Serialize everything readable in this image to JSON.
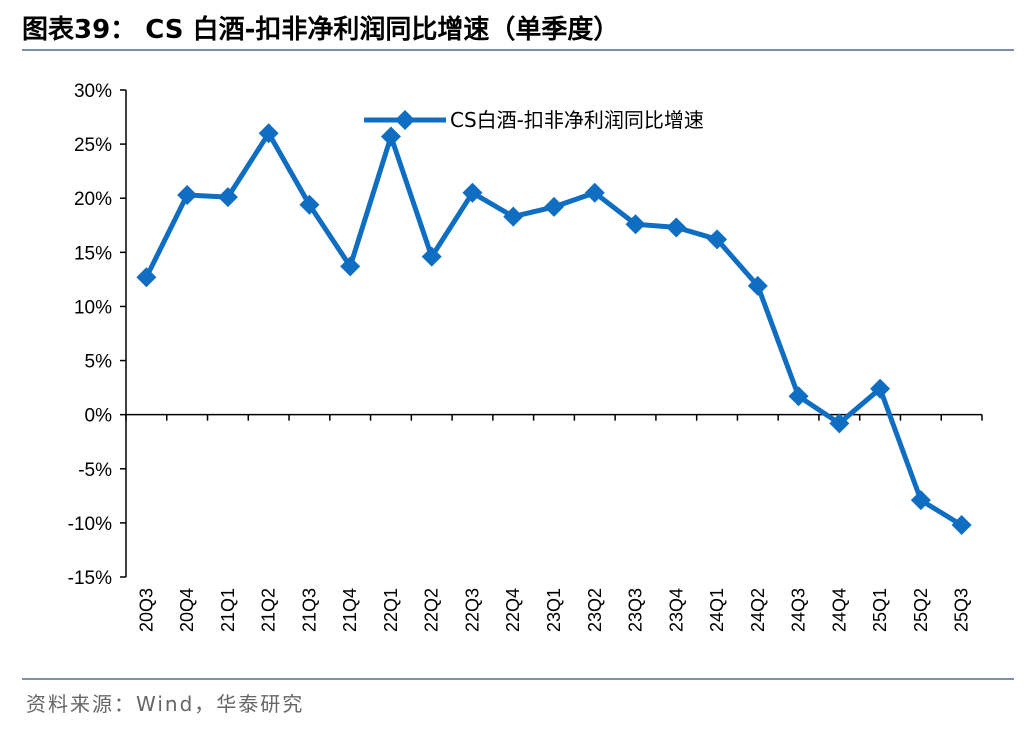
{
  "figure": {
    "title": "图表39： CS 白酒-扣非净利润同比增速（单季度）",
    "source": "资料来源：Wind，华泰研究"
  },
  "chart_data": {
    "type": "line",
    "title": "",
    "xlabel": "",
    "ylabel": "",
    "categories": [
      "20Q3",
      "20Q4",
      "21Q1",
      "21Q2",
      "21Q3",
      "21Q4",
      "22Q1",
      "22Q2",
      "22Q3",
      "22Q4",
      "23Q1",
      "23Q2",
      "23Q3",
      "23Q4",
      "24Q1",
      "24Q2",
      "24Q3",
      "24Q4",
      "25Q1",
      "25Q2",
      "25Q3"
    ],
    "series": [
      {
        "name": "CS白酒-扣非净利润同比增速",
        "color": "#0f6ec1",
        "marker": "diamond",
        "values": [
          12.7,
          20.3,
          20.1,
          26.0,
          19.4,
          13.7,
          25.7,
          14.6,
          20.5,
          18.3,
          19.2,
          20.5,
          17.6,
          17.3,
          16.2,
          11.9,
          1.7,
          -0.8,
          2.4,
          -7.9,
          -10.2
        ]
      }
    ],
    "ylim": [
      -15,
      30
    ],
    "ytick_step": 5,
    "ytick_labels": [
      "30%",
      "25%",
      "20%",
      "15%",
      "10%",
      "5%",
      "0%",
      "-5%",
      "-10%",
      "-15%"
    ],
    "y_unit": "%",
    "grid": false,
    "legend_position": "top-center"
  }
}
